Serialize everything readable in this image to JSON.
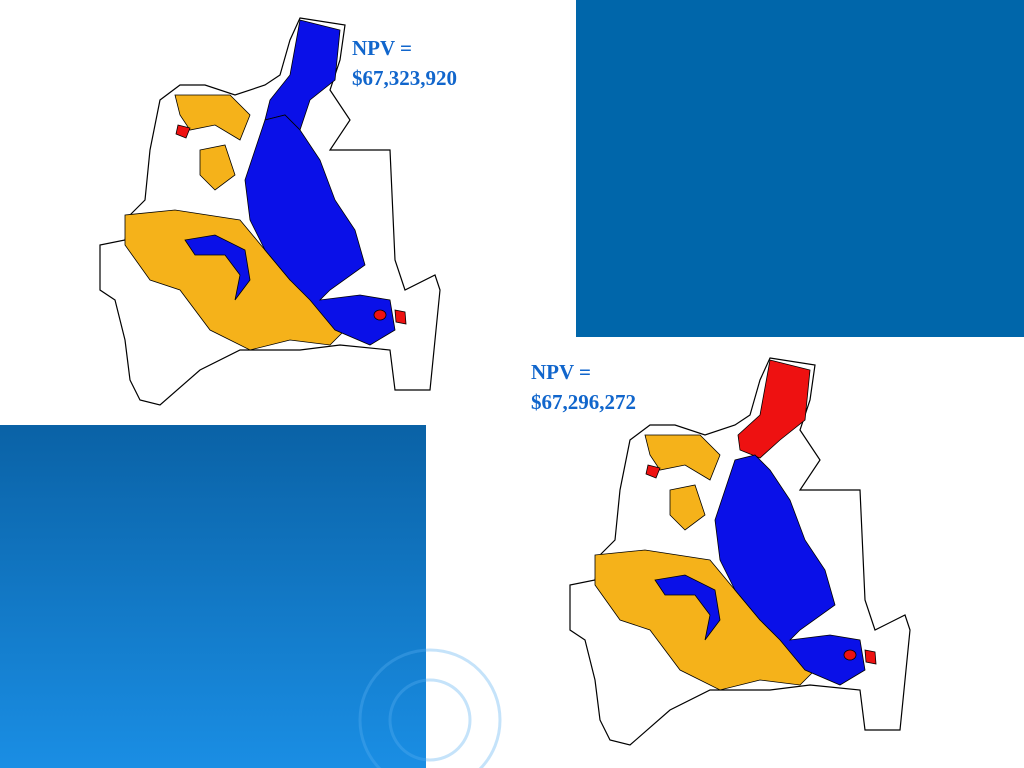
{
  "maps": [
    {
      "npv_label": "NPV =",
      "npv_value": "$67,323,920"
    },
    {
      "npv_label": "NPV =",
      "npv_value": "$67,296,272"
    }
  ]
}
